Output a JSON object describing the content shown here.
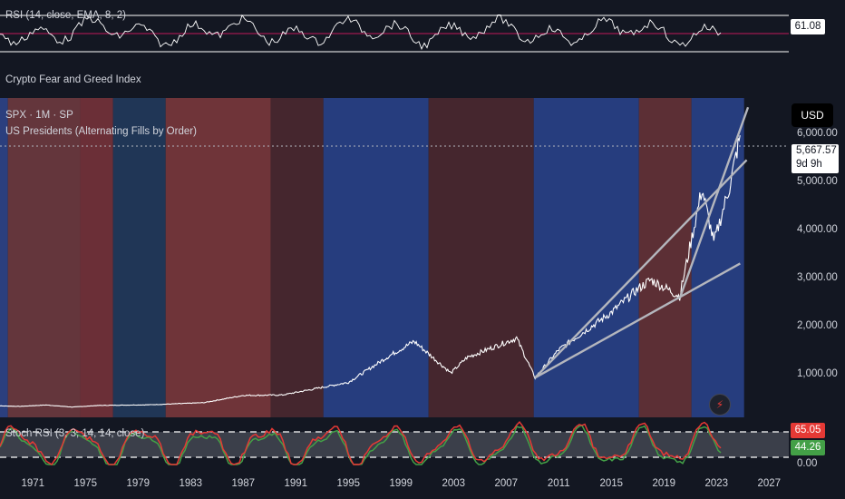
{
  "rsi_pane": {
    "label": "RSI (14, close, EMA, 8, 2)",
    "value": "61.08"
  },
  "fng_pane": {
    "label": "Crypto Fear and Greed Index"
  },
  "main_pane": {
    "symbol": "SPX · 1M · SP",
    "indicator": "US Presidents (Alternating Fills by Order)",
    "currency": "USD",
    "price": "5,667.57",
    "countdown": "9d 9h"
  },
  "price_axis": [
    "6,000.00",
    "5,000.00",
    "4,000.00",
    "3,000.00",
    "2,000.00",
    "1,000.00"
  ],
  "stoch_pane": {
    "label": "Stoch RSI (3, 3, 14, 14, close)",
    "k_value": "65.05",
    "d_value": "44.26",
    "axis_zero": "0.00"
  },
  "time_axis": [
    "1971",
    "1975",
    "1979",
    "1983",
    "1987",
    "1991",
    "1995",
    "1999",
    "2003",
    "2007",
    "2011",
    "2015",
    "2019",
    "2023",
    "2027"
  ],
  "chart_data": {
    "type": "line",
    "x_unit": "year",
    "xlim": [
      1968.5,
      2028.5
    ],
    "ylim": [
      -150,
      6700
    ],
    "series": [
      {
        "name": "SPX",
        "x": [
          1968,
          1970,
          1972,
          1974,
          1976,
          1980,
          1984,
          1987,
          1990,
          1995,
          1998,
          2000,
          2002.8,
          2004,
          2007.8,
          2009.2,
          2011,
          2013,
          2015,
          2017,
          2018,
          2020.2,
          2021.9,
          2022.8,
          2024,
          2024.8
        ],
        "y": [
          100,
          85,
          115,
          70,
          105,
          120,
          165,
          320,
          330,
          600,
          1150,
          1480,
          800,
          1130,
          1550,
          700,
          1300,
          1700,
          2100,
          2600,
          2800,
          2450,
          4750,
          3600,
          4800,
          5900
        ]
      }
    ],
    "trendlines": [
      {
        "x": [
          2009.2,
          2024.8
        ],
        "y": [
          700,
          3150
        ]
      },
      {
        "x": [
          2009.2,
          2025.3
        ],
        "y": [
          700,
          5370
        ]
      },
      {
        "x": [
          2020.2,
          2025.4
        ],
        "y": [
          2400,
          6500
        ]
      }
    ],
    "president_bands": [
      {
        "start": 1968.5,
        "end": 1969.1,
        "color": "#2b3f7e"
      },
      {
        "start": 1969.1,
        "end": 1974.6,
        "color": "#64363c"
      },
      {
        "start": 1974.6,
        "end": 1977.1,
        "color": "#6b2f37"
      },
      {
        "start": 1977.1,
        "end": 1981.1,
        "color": "#203656"
      },
      {
        "start": 1981.1,
        "end": 1989.1,
        "color": "#6f3439"
      },
      {
        "start": 1989.1,
        "end": 1993.1,
        "color": "#45262e"
      },
      {
        "start": 1993.1,
        "end": 2001.1,
        "color": "#263d7e"
      },
      {
        "start": 2001.1,
        "end": 2009.1,
        "color": "#45262e"
      },
      {
        "start": 2009.1,
        "end": 2017.1,
        "color": "#263d7e"
      },
      {
        "start": 2017.1,
        "end": 2021.1,
        "color": "#5c2f35"
      },
      {
        "start": 2021.1,
        "end": 2025.1,
        "color": "#263d7e"
      }
    ],
    "current_price": 5667.57,
    "grid": false
  },
  "colors": {
    "background": "#131722",
    "price_line": "#ffffff",
    "trendline": "#b4b6bd",
    "rsi_line": "#ffffff",
    "rsi_mid": "#c2185b",
    "stoch_k": "#e53935",
    "stoch_d": "#43a047"
  }
}
